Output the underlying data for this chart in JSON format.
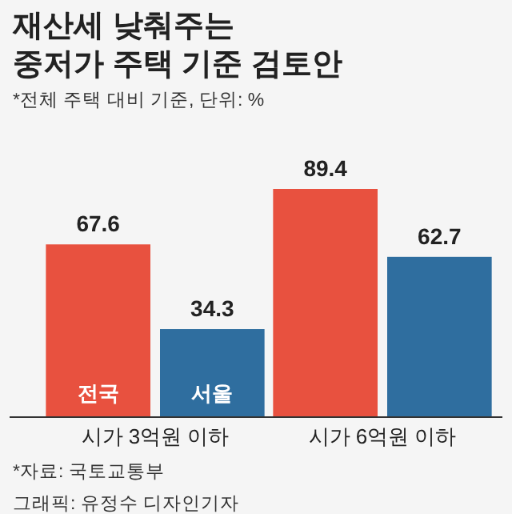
{
  "chart_data": {
    "type": "bar",
    "title": "재산세 낮춰주는\n중저가 주택 기준 검토안",
    "subtitle": "*전체 주택 대비 기준, 단위: %",
    "categories": [
      "시가 3억원 이하",
      "시가 6억원 이하"
    ],
    "series": [
      {
        "name": "전국",
        "color": "#e8513f",
        "values": [
          67.6,
          89.4
        ]
      },
      {
        "name": "서울",
        "color": "#2f6e9f",
        "values": [
          34.3,
          62.7
        ]
      }
    ],
    "data_labels": true,
    "annotations": [
      "*자료: 국토교통부",
      "그래픽: 유정수 디자인기자"
    ]
  }
}
